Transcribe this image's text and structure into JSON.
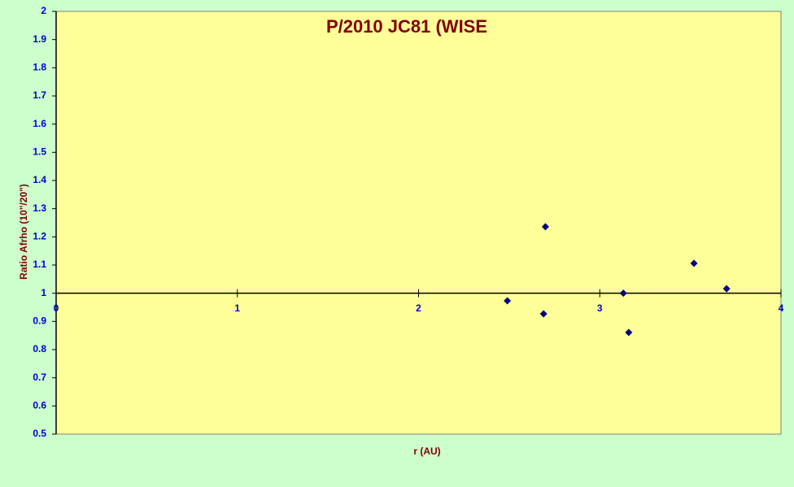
{
  "chart_data": {
    "type": "scatter",
    "title": "P/2010 JC81 (WISE",
    "x_label": "r (AU)",
    "y_label": "Ratio Afrho (10\"/20\")",
    "series": [
      {
        "name": "Ratio",
        "color": "#000080",
        "x": [
          2.49,
          2.69,
          2.7,
          3.13,
          3.16,
          3.52,
          3.7
        ],
        "values": [
          0.973,
          0.927,
          1.236,
          1.0,
          0.861,
          1.106,
          1.016
        ]
      }
    ],
    "xlim": [
      0,
      4
    ],
    "xticks": [
      0,
      1,
      2,
      3,
      4
    ],
    "ylim": [
      0.5,
      2
    ],
    "yticks": [
      0.5,
      0.6,
      0.7,
      0.8,
      0.9,
      1,
      1.1,
      1.2,
      1.3,
      1.4,
      1.5,
      1.6,
      1.7,
      1.8,
      1.9,
      2
    ],
    "x_axis_crosses_at": 1
  }
}
